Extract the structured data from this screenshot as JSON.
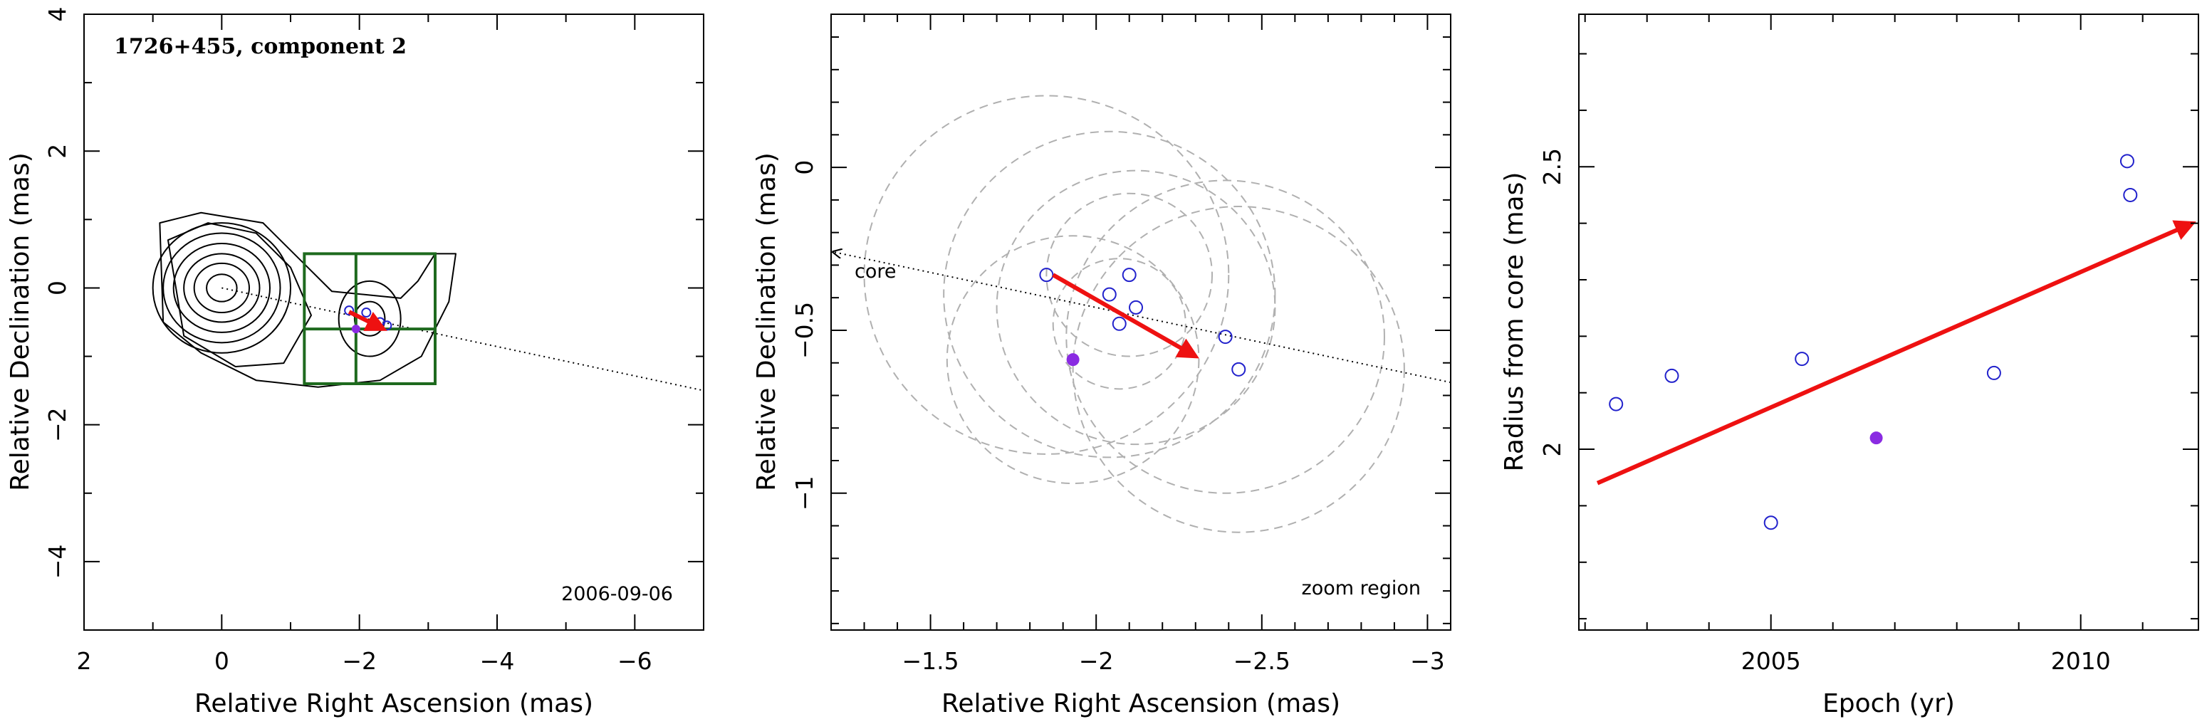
{
  "colors": {
    "arrow": "#ee1111",
    "open_marker": "#2222cc",
    "filled_marker": "#8a2be2",
    "box": "#1e6a1e",
    "circle": "#b0b0b0"
  },
  "chart_data": [
    {
      "type": "contour",
      "title": "1726+455, component 2",
      "date_note": "2006-09-06",
      "xlabel": "Relative Right Ascension (mas)",
      "ylabel": "Relative Declination (mas)",
      "xlim": [
        2,
        -7
      ],
      "ylim": [
        -5,
        4
      ],
      "x_ticks": [
        "2",
        "0",
        "−2",
        "−4",
        "−6"
      ],
      "y_ticks": [
        "−4",
        "−2",
        "0",
        "2",
        "4"
      ],
      "contours": [
        {
          "rx": 0.22,
          "ry": 0.2
        },
        {
          "rx": 0.4,
          "ry": 0.36
        },
        {
          "rx": 0.55,
          "ry": 0.5
        },
        {
          "rx": 0.7,
          "ry": 0.65
        },
        {
          "rx": 0.85,
          "ry": 0.8
        },
        {
          "rx": 1.0,
          "ry": 0.95
        }
      ],
      "zoom_box": {
        "x": [
          -1.2,
          -3.1
        ],
        "y": [
          -1.4,
          0.5
        ]
      },
      "position_points": [
        {
          "x": -1.85,
          "y": -0.33
        },
        {
          "x": -2.1,
          "y": -0.36
        },
        {
          "x": -2.3,
          "y": -0.5
        },
        {
          "x": -2.4,
          "y": -0.55
        }
      ],
      "filled_point": {
        "x": -1.95,
        "y": -0.6
      },
      "arrow": {
        "from": [
          -1.85,
          -0.35
        ],
        "to": [
          -2.35,
          -0.6
        ]
      },
      "core_line": {
        "from": [
          0,
          0
        ],
        "to": [
          -7,
          -1.5
        ]
      }
    },
    {
      "type": "scatter",
      "note": "zoom region",
      "xlabel": "Relative Right Ascension (mas)",
      "ylabel": "Relative Declination (mas)",
      "xlim": [
        -1.2,
        -3.07
      ],
      "ylim": [
        -1.42,
        0.47
      ],
      "x_ticks": [
        "−1.5",
        "−2",
        "−2.5",
        "−3"
      ],
      "y_ticks": [
        "0",
        "−0.5",
        "−1"
      ],
      "core_label": "core",
      "core_line": {
        "from": [
          -1.2,
          -0.26
        ],
        "to": [
          -3.07,
          -0.66
        ]
      },
      "points": [
        {
          "x": -1.85,
          "y": -0.33
        },
        {
          "x": -2.04,
          "y": -0.39
        },
        {
          "x": -2.07,
          "y": -0.48
        },
        {
          "x": -2.1,
          "y": -0.33
        },
        {
          "x": -2.12,
          "y": -0.43
        },
        {
          "x": -2.39,
          "y": -0.52
        },
        {
          "x": -2.43,
          "y": -0.62
        }
      ],
      "filled_point": {
        "x": -1.93,
        "y": -0.59
      },
      "arrow": {
        "from": [
          -1.87,
          -0.33
        ],
        "to": [
          -2.3,
          -0.58
        ]
      },
      "error_circles": [
        {
          "x": -1.85,
          "y": -0.33,
          "r": 0.55
        },
        {
          "x": -1.93,
          "y": -0.59,
          "r": 0.38
        },
        {
          "x": -2.04,
          "y": -0.39,
          "r": 0.5
        },
        {
          "x": -2.07,
          "y": -0.48,
          "r": 0.2
        },
        {
          "x": -2.1,
          "y": -0.33,
          "r": 0.25
        },
        {
          "x": -2.12,
          "y": -0.43,
          "r": 0.42
        },
        {
          "x": -2.39,
          "y": -0.52,
          "r": 0.48
        },
        {
          "x": -2.43,
          "y": -0.62,
          "r": 0.5
        }
      ]
    },
    {
      "type": "scatter",
      "xlabel": "Epoch (yr)",
      "ylabel": "Radius from core (mas)",
      "xlim": [
        2001.9,
        2011.9
      ],
      "ylim": [
        1.68,
        2.77
      ],
      "x_ticks": [
        "2005",
        "2010"
      ],
      "y_ticks": [
        "2",
        "2.5"
      ],
      "points": [
        {
          "x": 2002.5,
          "y": 2.08
        },
        {
          "x": 2003.4,
          "y": 2.13
        },
        {
          "x": 2005.0,
          "y": 1.87
        },
        {
          "x": 2005.5,
          "y": 2.16
        },
        {
          "x": 2008.6,
          "y": 2.135
        },
        {
          "x": 2010.75,
          "y": 2.51
        },
        {
          "x": 2010.8,
          "y": 2.45
        }
      ],
      "filled_point": {
        "x": 2006.7,
        "y": 2.02
      },
      "arrow": {
        "from": [
          2002.2,
          1.94
        ],
        "to": [
          2011.8,
          2.4
        ]
      }
    }
  ]
}
